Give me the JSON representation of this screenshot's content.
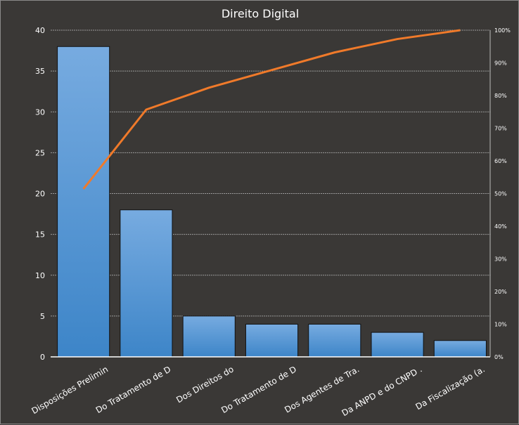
{
  "chart_data": {
    "type": "bar",
    "title": "Direito Digital",
    "categories": [
      "Disposições Prelimin",
      "Do Tratamento de D",
      "Dos Direitos do",
      "Do Tratamento de D",
      "Dos Agentes de Tra.",
      "Da ANPD e do CNPD  .",
      "Da Fiscalização (a."
    ],
    "values": [
      38,
      18,
      5,
      4,
      4,
      3,
      2
    ],
    "cumulative_percent": [
      51.4,
      75.7,
      82.4,
      87.8,
      93.2,
      97.3,
      100
    ],
    "ylim": [
      0,
      40
    ],
    "y_ticks": [
      "0",
      "5",
      "10",
      "15",
      "20",
      "25",
      "30",
      "35",
      "40"
    ],
    "y2lim": [
      0,
      100
    ],
    "y2_ticks": [
      "0%",
      "10%",
      "20%",
      "30%",
      "40%",
      "50%",
      "60%",
      "70%",
      "80%",
      "90%",
      "100%"
    ],
    "grid": true,
    "legend": "none",
    "colors": {
      "bar_top": "#77abe0",
      "bar_bottom": "#3d85c8",
      "line": "#f07a2a",
      "background": "#3a3836",
      "grid": "#9a9a9a"
    }
  }
}
